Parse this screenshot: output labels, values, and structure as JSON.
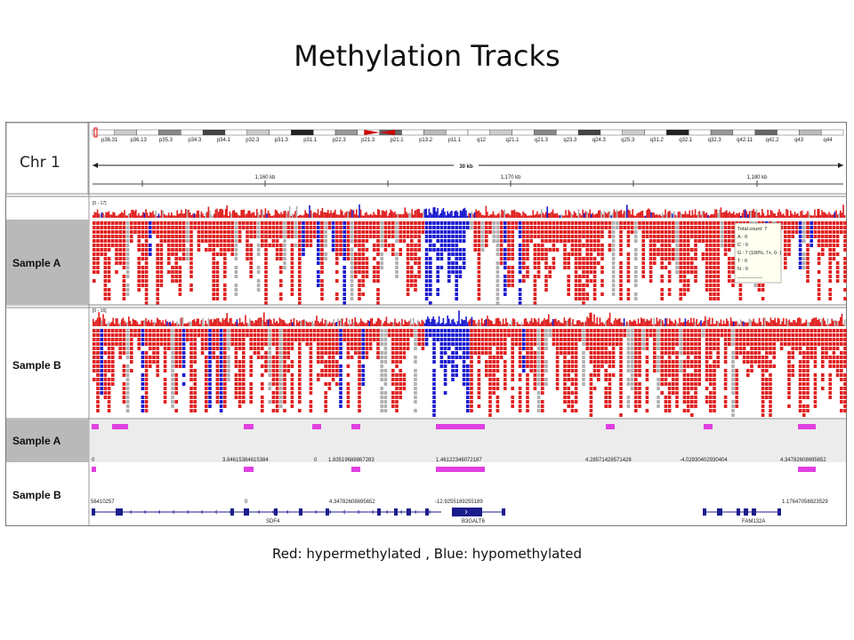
{
  "slide": {
    "title": "Methylation Tracks",
    "caption": "Red: hypermethylated , Blue: hypomethylated"
  },
  "colors": {
    "hyper": "#e02020",
    "hypo": "#1a1ad0",
    "gray": "#b0b0b0",
    "magenta": "#e040e0",
    "gene": "#1c1c8c",
    "panel_label_bg": "#b9b9b9"
  },
  "ideogram": {
    "chrom_label": "Chr 1",
    "bands": [
      "p36.31",
      "p36.13",
      "p35.3",
      "p34.3",
      "p34.1",
      "p32.3",
      "p31.3",
      "p31.1",
      "p22.3",
      "p21.3",
      "p21.1",
      "p13.2",
      "p11.1",
      "q12",
      "q21.1",
      "q21.3",
      "q23.3",
      "q24.3",
      "q25.3",
      "q31.2",
      "q32.1",
      "q32.3",
      "q42.11",
      "q42.2",
      "q43",
      "q44"
    ],
    "span_label": "30 kb",
    "ruler_labels": [
      "1,160 kb",
      "1,170 kb",
      "1,180 kb"
    ]
  },
  "tracks": {
    "sample_a": {
      "label": "Sample A",
      "range": "[0 - 17]"
    },
    "sample_b": {
      "label": "Sample B",
      "range": "[0 - 16]"
    }
  },
  "tooltip": {
    "lines": [
      "Total count: 7",
      "A : 0",
      "C : 0",
      "G : 7 (100%, 7+, 0- )",
      "T : 0",
      "N : 0",
      "---------------"
    ]
  },
  "features": {
    "sample_a_label": "Sample A",
    "sample_b_label": "Sample B",
    "sample_a_values": [
      "0",
      "3.84615384615384",
      "0",
      "1.83519688867283",
      "1.46122346072187",
      "4.28571428571428",
      "-4.02930402930404",
      "4.34782608695652"
    ],
    "sample_b_values": [
      "56410257",
      "0",
      "4.34782608695652",
      "-12.9255189255189",
      "1.17647058823529"
    ],
    "genes": [
      "SDF4",
      "B3GALT6",
      "FAM132A"
    ]
  }
}
